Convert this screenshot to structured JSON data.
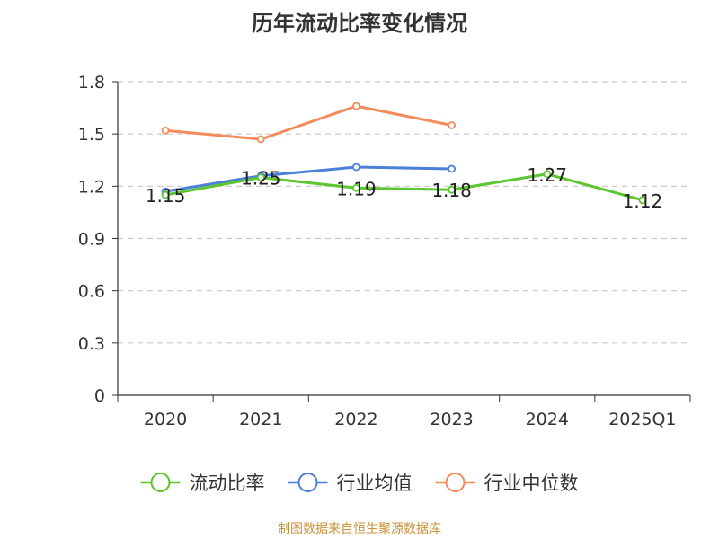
{
  "title": "历年流动比率变化情况",
  "source": "制图数据来自恒生聚源数据库",
  "chart_data": {
    "type": "line",
    "categories": [
      "2020",
      "2021",
      "2022",
      "2023",
      "2024",
      "2025Q1"
    ],
    "y_ticks": [
      "0",
      "0.3",
      "0.6",
      "0.9",
      "1.2",
      "1.5",
      "1.8"
    ],
    "ylim": [
      0,
      1.8
    ],
    "grid": true,
    "legend_position": "bottom",
    "series": [
      {
        "name": "流动比率",
        "color": "#5cc630",
        "values": [
          1.15,
          1.25,
          1.19,
          1.18,
          1.27,
          1.12
        ],
        "labels": [
          "1.15",
          "1.25",
          "1.19",
          "1.18",
          "1.27",
          "1.12"
        ]
      },
      {
        "name": "行业均值",
        "color": "#4b7fd9",
        "values": [
          1.17,
          1.26,
          1.31,
          1.3,
          null,
          null
        ]
      },
      {
        "name": "行业中位数",
        "color": "#f48b5a",
        "values": [
          1.52,
          1.47,
          1.66,
          1.55,
          null,
          null
        ]
      }
    ]
  }
}
